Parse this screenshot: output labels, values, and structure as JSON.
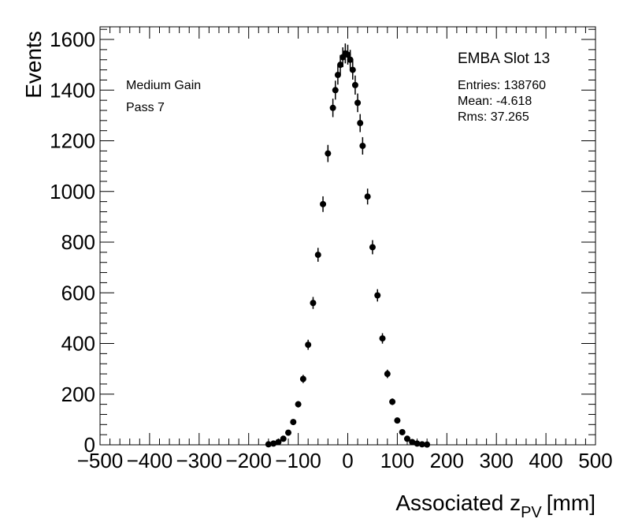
{
  "chart_data": {
    "type": "scatter",
    "style": "histogram-with-error-bars",
    "xlabel": "Associated z",
    "xlabel_subscript": "PV",
    "xlabel_unit": "[mm]",
    "ylabel": "Events",
    "xlim": [
      -500,
      500
    ],
    "ylim": [
      0,
      1650
    ],
    "x_ticks": [
      -500,
      -400,
      -300,
      -200,
      -100,
      0,
      100,
      200,
      300,
      400,
      500
    ],
    "x_tick_labels": [
      "−500",
      "−400",
      "−300",
      "−200",
      "−100",
      "0",
      "100",
      "200",
      "300",
      "400",
      "500"
    ],
    "y_ticks": [
      0,
      200,
      400,
      600,
      800,
      1000,
      1200,
      1400,
      1600
    ],
    "y_tick_labels": [
      "0",
      "200",
      "400",
      "600",
      "800",
      "1000",
      "1200",
      "1400",
      "1600"
    ],
    "grid": false,
    "legend": "none",
    "color": "#000000",
    "annotations": {
      "title": "EMBA Slot 13",
      "entries": "Entries: 138760",
      "mean": "Mean: -4.618",
      "rms": "Rms: 37.265",
      "gain": "Medium Gain",
      "pass": "Pass 7"
    },
    "x": [
      -160,
      -150,
      -140,
      -130,
      -120,
      -110,
      -100,
      -90,
      -80,
      -70,
      -60,
      -50,
      -40,
      -30,
      -25,
      -20,
      -15,
      -10,
      -5,
      0,
      5,
      10,
      15,
      20,
      25,
      30,
      40,
      50,
      60,
      70,
      80,
      90,
      100,
      110,
      120,
      130,
      140,
      150,
      160
    ],
    "y": [
      2,
      5,
      11,
      24,
      48,
      90,
      160,
      260,
      395,
      560,
      750,
      950,
      1150,
      1330,
      1400,
      1460,
      1500,
      1530,
      1545,
      1540,
      1520,
      1480,
      1420,
      1350,
      1270,
      1180,
      980,
      780,
      590,
      420,
      280,
      170,
      96,
      50,
      24,
      11,
      5,
      2,
      1
    ]
  }
}
